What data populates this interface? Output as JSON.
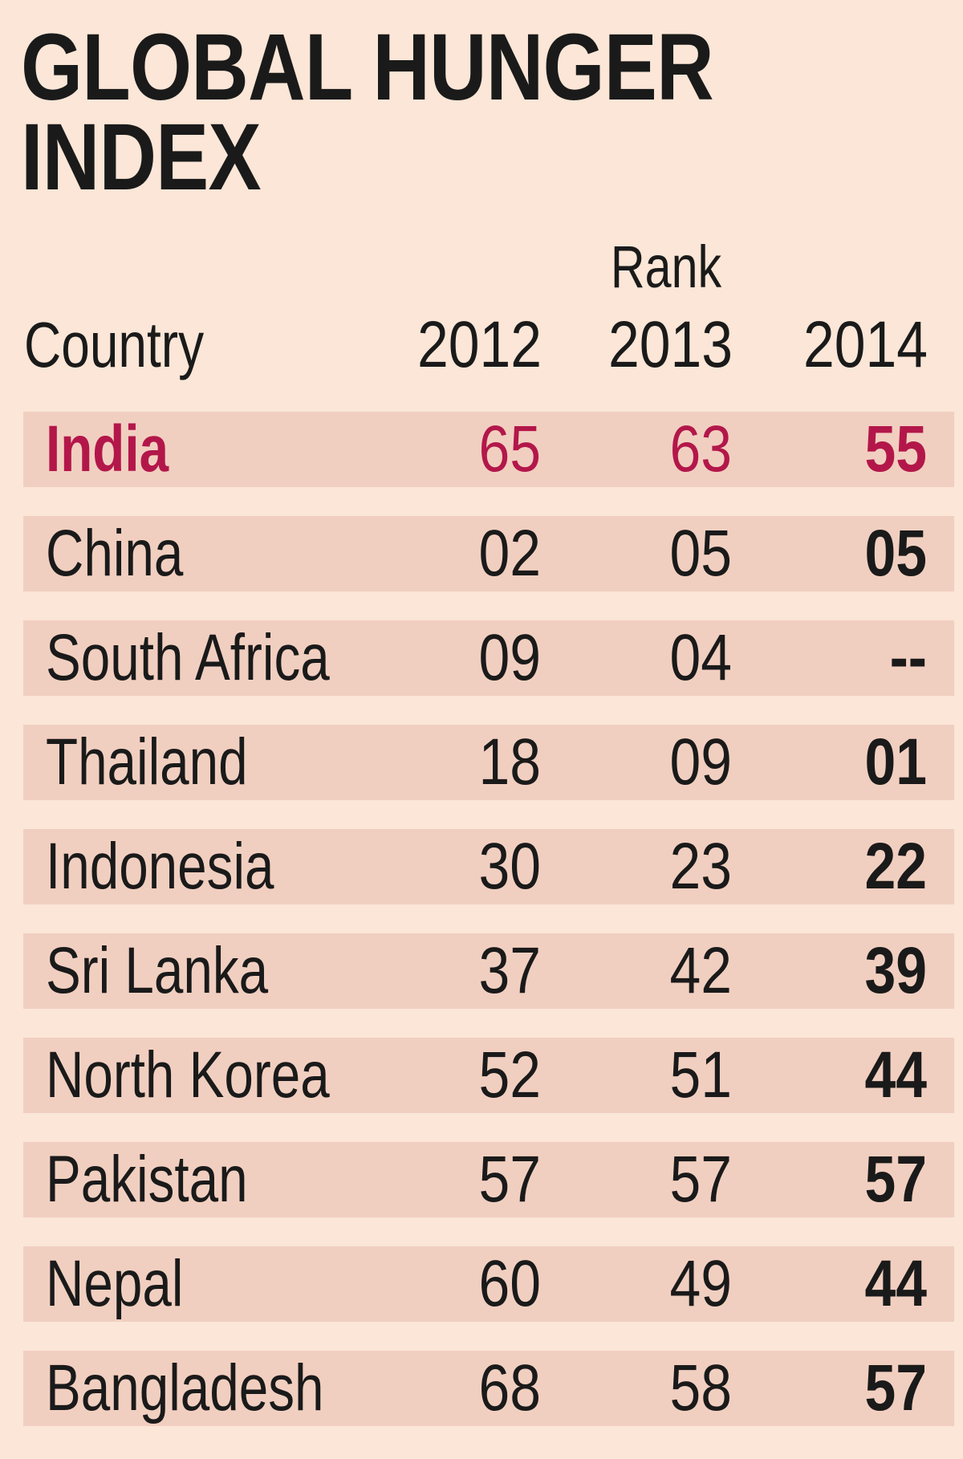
{
  "title": [
    "GLOBAL HUNGER",
    "INDEX"
  ],
  "header": {
    "rank_label": "Rank",
    "country": "Country",
    "years": [
      "2012",
      "2013",
      "2014"
    ]
  },
  "colors": {
    "background": "#fbe6d7",
    "row_band": "#f1cfc0",
    "highlight": "#b3174a"
  },
  "rows": [
    {
      "country": "India",
      "r2012": "65",
      "r2013": "63",
      "r2014": "55",
      "highlight": true
    },
    {
      "country": "China",
      "r2012": "02",
      "r2013": "05",
      "r2014": "05"
    },
    {
      "country": "South Africa",
      "r2012": "09",
      "r2013": "04",
      "r2014": "--"
    },
    {
      "country": "Thailand",
      "r2012": "18",
      "r2013": "09",
      "r2014": "01"
    },
    {
      "country": "Indonesia",
      "r2012": "30",
      "r2013": "23",
      "r2014": "22"
    },
    {
      "country": "Sri Lanka",
      "r2012": "37",
      "r2013": "42",
      "r2014": "39"
    },
    {
      "country": "North Korea",
      "r2012": "52",
      "r2013": "51",
      "r2014": "44"
    },
    {
      "country": "Pakistan",
      "r2012": "57",
      "r2013": "57",
      "r2014": "57"
    },
    {
      "country": "Nepal",
      "r2012": "60",
      "r2013": "49",
      "r2014": "44"
    },
    {
      "country": "Bangladesh",
      "r2012": "68",
      "r2013": "58",
      "r2014": "57"
    }
  ]
}
